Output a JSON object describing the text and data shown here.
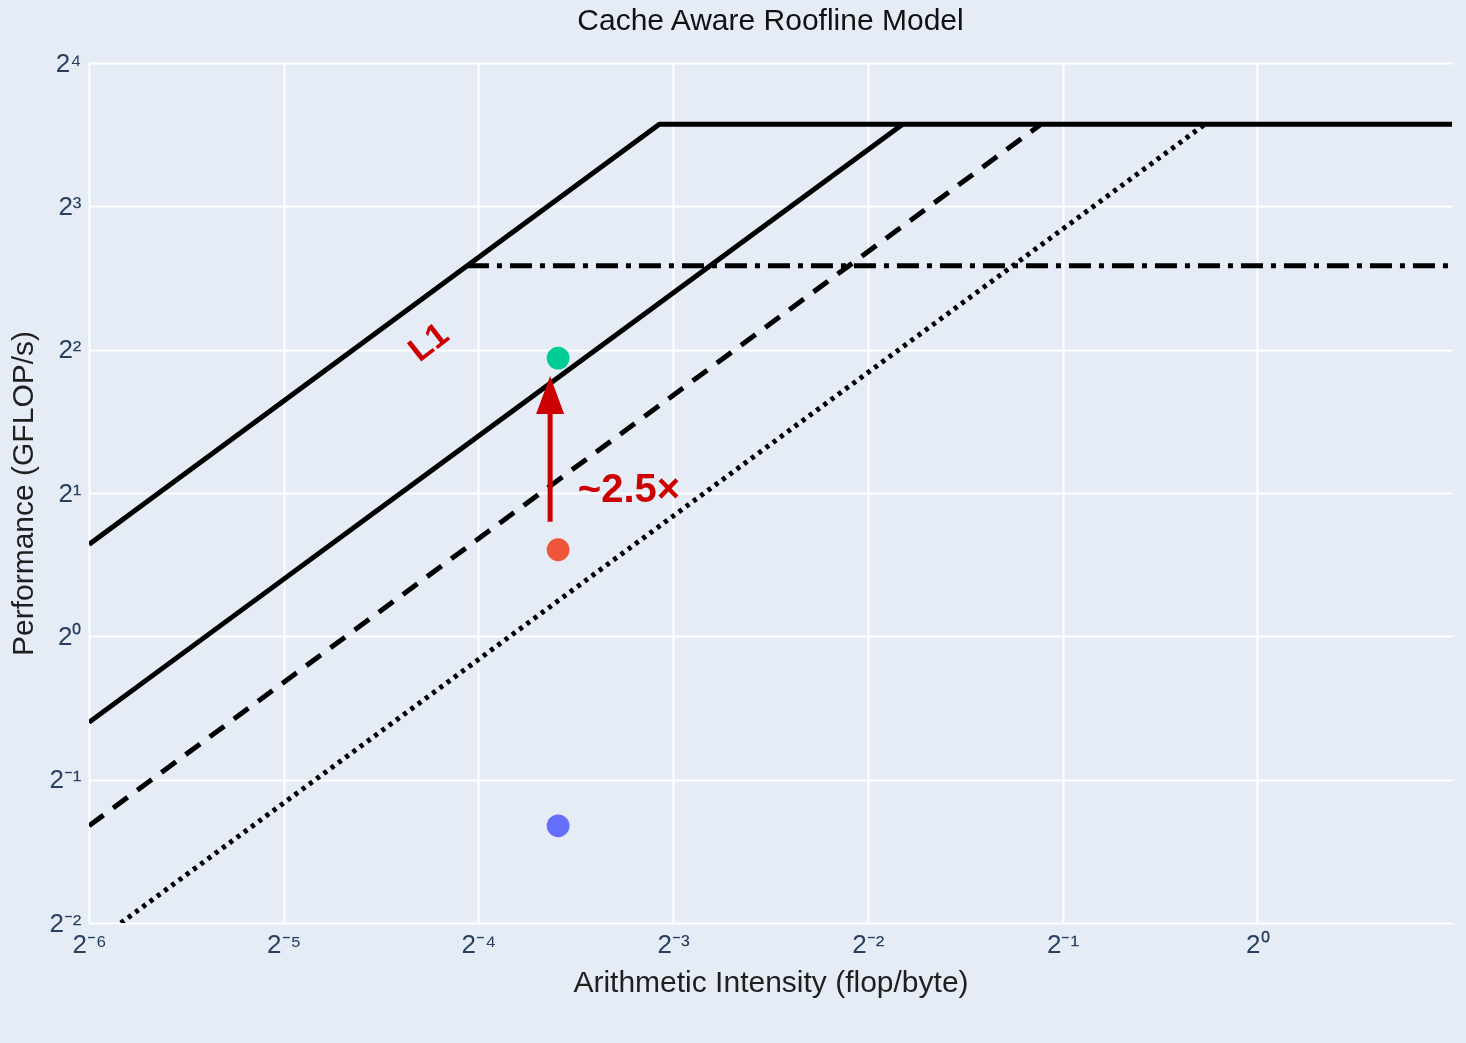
{
  "chart_data": {
    "type": "line",
    "title": "Cache Aware Roofline Model",
    "xlabel": "Arithmetic Intensity (flop/byte)",
    "ylabel": "Performance (GFLOP/s)",
    "log": "xy",
    "grid": true,
    "marker": "none",
    "xlim": [
      0.015625,
      2
    ],
    "ylim": [
      0.25,
      16
    ],
    "xticks": [
      {
        "value": 0.015625,
        "label": "2⁻⁶"
      },
      {
        "value": 0.03125,
        "label": "2⁻⁵"
      },
      {
        "value": 0.0625,
        "label": "2⁻⁴"
      },
      {
        "value": 0.125,
        "label": "2⁻³"
      },
      {
        "value": 0.25,
        "label": "2⁻²"
      },
      {
        "value": 0.5,
        "label": "2⁻¹"
      },
      {
        "value": 1,
        "label": "2⁰"
      }
    ],
    "yticks": [
      {
        "value": 0.25,
        "label": "2⁻²"
      },
      {
        "value": 0.5,
        "label": "2⁻¹"
      },
      {
        "value": 1,
        "label": "2⁰"
      },
      {
        "value": 2,
        "label": "2¹"
      },
      {
        "value": 4,
        "label": "2²"
      },
      {
        "value": 8,
        "label": "2³"
      },
      {
        "value": 16,
        "label": "2⁴"
      }
    ],
    "series": [
      {
        "color": "#000000",
        "line_style": "solid",
        "x": [
          0.015625,
          0.119,
          2
        ],
        "values": [
          1.56,
          11.9,
          11.9
        ]
      },
      {
        "color": "#000000",
        "line_style": "solid",
        "x": [
          0.015625,
          0.283
        ],
        "values": [
          0.66,
          11.9
        ]
      },
      {
        "color": "#000000",
        "line_style": "dashed",
        "x": [
          0.015625,
          0.463
        ],
        "values": [
          0.4,
          11.9
        ]
      },
      {
        "color": "#000000",
        "line_style": "dotted",
        "x": [
          0.0175,
          0.83
        ],
        "values": [
          0.25,
          11.9
        ]
      },
      {
        "color": "#000000",
        "line_style": "dashdot",
        "x": [
          0.06,
          2
        ],
        "values": [
          6,
          6
        ]
      },
      {
        "type": "scatter",
        "marker": "circle",
        "x": [
          0.083,
          0.083,
          0.083
        ],
        "values": [
          3.84,
          1.52,
          0.4
        ],
        "colors": [
          "#00cc96",
          "#ef553b",
          "#636efa"
        ]
      }
    ],
    "annotations": [
      "L1",
      "~2.5×"
    ]
  }
}
